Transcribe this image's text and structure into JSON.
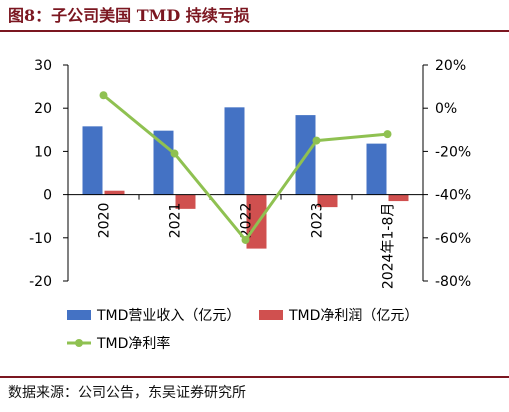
{
  "header": {
    "title": "图8：子公司美国 TMD 持续亏损"
  },
  "footer": {
    "source": "数据来源：公司公告，东吴证券研究所"
  },
  "colors": {
    "revenue": "#4472c4",
    "profit": "#d0504f",
    "margin": "#8fc151",
    "rule": "#7b1620"
  },
  "chart_data": {
    "type": "bar",
    "categories": [
      "2020",
      "2021",
      "2022",
      "2023",
      "2024年1-8月"
    ],
    "series": [
      {
        "name": "TMD营业收入（亿元）",
        "type": "bar",
        "axis": "left",
        "values": [
          15.8,
          14.8,
          20.2,
          18.4,
          11.8
        ]
      },
      {
        "name": "TMD净利润（亿元）",
        "type": "bar",
        "axis": "left",
        "values": [
          0.9,
          -3.3,
          -12.5,
          -2.9,
          -1.5
        ]
      },
      {
        "name": "TMD净利率",
        "type": "line",
        "axis": "right",
        "values": [
          6,
          -21,
          -61,
          -15,
          -12
        ]
      }
    ],
    "ylim": [
      -20,
      30
    ],
    "yticks": [
      "-20",
      "-10",
      "0",
      "10",
      "20",
      "30"
    ],
    "y2lim": [
      -80,
      20
    ],
    "y2ticks": [
      "-80%",
      "-60%",
      "-40%",
      "-20%",
      "0%",
      "20%"
    ],
    "grid": false,
    "legend": "bottom"
  }
}
